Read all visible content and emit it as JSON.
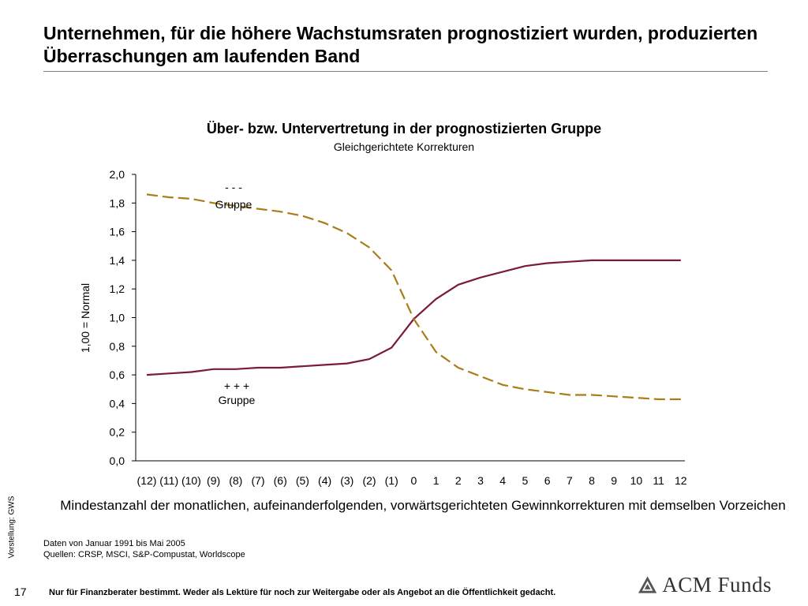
{
  "slide": {
    "title": "Unternehmen, für die höhere Wachstumsraten prognostiziert wurden, produzierten Überraschungen am laufenden Band",
    "page_number": "17",
    "disclaimer": "Nur für Finanzberater bestimmt. Weder als Lektüre für noch zur Weitergabe oder als Angebot an die Öffentlichkeit gedacht.",
    "side_note": "Vorstellung: GWS",
    "notes": [
      "Daten von Januar 1991 bis Mai 2005",
      "Quellen: CRSP, MSCI, S&P-Compustat, Worldscope"
    ],
    "logo": {
      "text": "ACM Funds",
      "icon": "acm-mountain-logo-icon",
      "color": "#555555"
    }
  },
  "chart_data": {
    "type": "line",
    "title": "Über- bzw. Untervertretung in der prognostizierten Gruppe",
    "subtitle": "Gleichgerichtete Korrekturen",
    "ylabel": "1,00 = Normal",
    "xlabel": "Mindestanzahl der monatlichen, aufeinanderfolgenden, vorwärtsgerichteten Gewinnkorrekturen mit demselben Vorzeichen",
    "categories": [
      "(12)",
      "(11)",
      "(10)",
      "(9)",
      "(8)",
      "(7)",
      "(6)",
      "(5)",
      "(4)",
      "(3)",
      "(2)",
      "(1)",
      "0",
      "1",
      "2",
      "3",
      "4",
      "5",
      "6",
      "7",
      "8",
      "9",
      "10",
      "11",
      "12"
    ],
    "yticks": [
      "0,0",
      "0,2",
      "0,4",
      "0,6",
      "0,8",
      "1,0",
      "1,2",
      "1,4",
      "1,6",
      "1,8",
      "2,0"
    ],
    "ylim": [
      0,
      2.0
    ],
    "grid": false,
    "series": [
      {
        "name": "+ + + Gruppe",
        "label_line1": "+ + +",
        "label_line2": "Gruppe",
        "style": "solid",
        "color": "#7a1a3c",
        "values": [
          0.6,
          0.61,
          0.62,
          0.64,
          0.64,
          0.65,
          0.65,
          0.66,
          0.67,
          0.68,
          0.71,
          0.79,
          0.99,
          1.13,
          1.23,
          1.28,
          1.32,
          1.36,
          1.38,
          1.39,
          1.4,
          1.4,
          1.4,
          1.4,
          1.4
        ]
      },
      {
        "name": "- - - Gruppe",
        "label_line1": "- - -",
        "label_line2": "Gruppe",
        "style": "dashed",
        "color": "#a87d1a",
        "values": [
          1.86,
          1.84,
          1.83,
          1.8,
          1.78,
          1.76,
          1.74,
          1.71,
          1.66,
          1.59,
          1.49,
          1.33,
          0.99,
          0.76,
          0.65,
          0.59,
          0.53,
          0.5,
          0.48,
          0.46,
          0.46,
          0.45,
          0.44,
          0.43,
          0.43
        ]
      }
    ]
  }
}
